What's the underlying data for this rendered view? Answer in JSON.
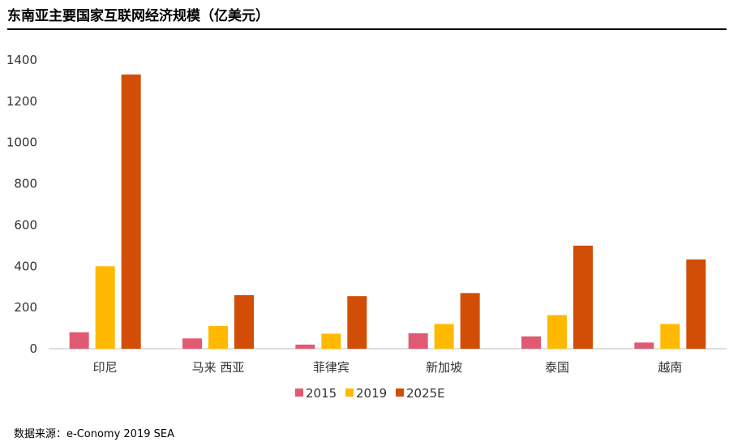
{
  "title": "东南亚主要国家互联网经济规模（亿美元）",
  "source": "数据来源：e-Conomy 2019 SEA",
  "colors": {
    "2015": "#E15A73",
    "2019": "#FFB900",
    "2025E": "#D24E06",
    "axis": "#BFBFBF"
  },
  "chart_data": {
    "type": "bar",
    "title": "东南亚主要国家互联网经济规模（亿美元）",
    "categories": [
      "印尼",
      "马来 西亚",
      "菲律宾",
      "新加坡",
      "泰国",
      "越南"
    ],
    "series": [
      {
        "name": "2015",
        "values": [
          80,
          50,
          20,
          75,
          60,
          30
        ]
      },
      {
        "name": "2019",
        "values": [
          400,
          110,
          73,
          120,
          163,
          120
        ]
      },
      {
        "name": "2025E",
        "values": [
          1330,
          260,
          255,
          270,
          500,
          433
        ]
      }
    ],
    "ylim": [
      0,
      1400
    ],
    "yticks": [
      "0",
      "200",
      "400",
      "600",
      "800",
      "1000",
      "1200",
      "1400"
    ],
    "grid": false,
    "legend": "bottom"
  }
}
